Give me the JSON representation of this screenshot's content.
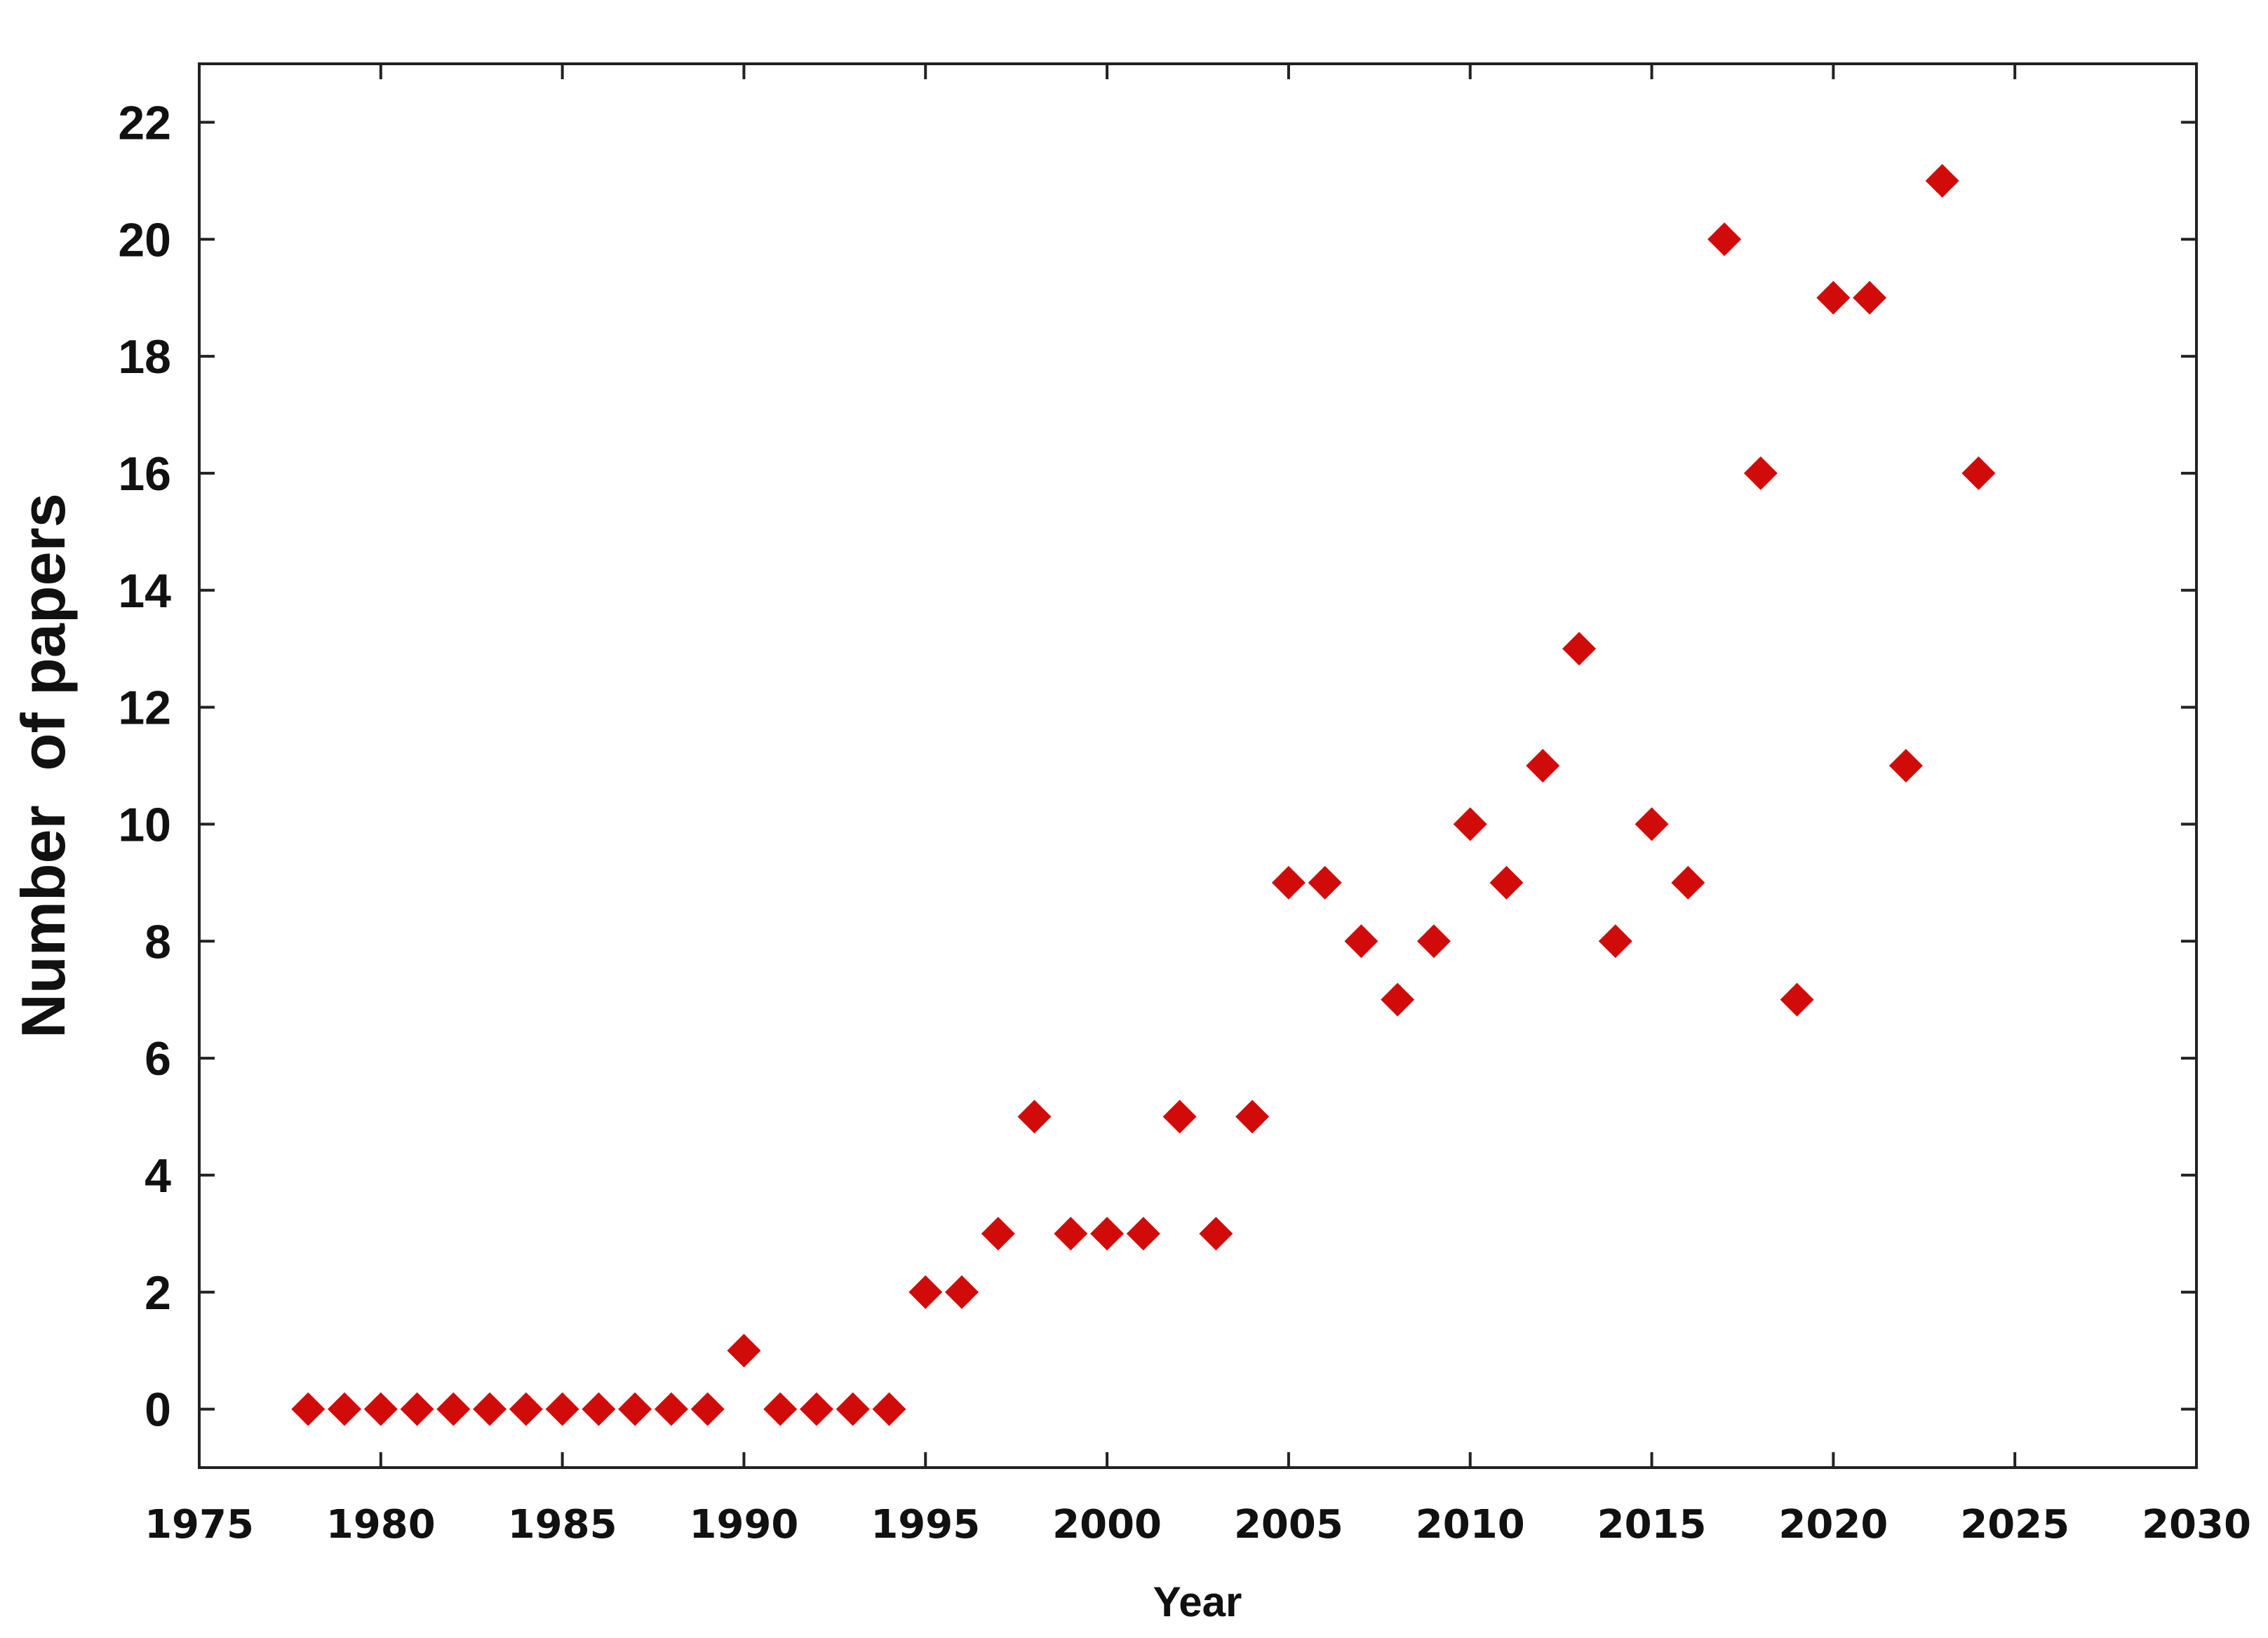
{
  "chart_data": {
    "type": "scatter",
    "title": "",
    "xlabel": "Year",
    "ylabel": "Number  of papers",
    "xlim": [
      1975,
      2030
    ],
    "ylim": [
      -1,
      23
    ],
    "xticks": [
      1975,
      1980,
      1985,
      1990,
      1995,
      2000,
      2005,
      2010,
      2015,
      2020,
      2025,
      2030
    ],
    "xtick_labels": [
      "1975",
      "1980",
      "1985",
      "1990",
      "1995",
      "2000",
      "2005",
      "2010",
      "2015",
      "2020",
      "2025",
      "2030"
    ],
    "yticks": [
      0,
      2,
      4,
      6,
      8,
      10,
      12,
      14,
      16,
      18,
      20,
      22
    ],
    "ytick_labels": [
      "0",
      "2",
      "4",
      "6",
      "8",
      "10",
      "12",
      "14",
      "16",
      "18",
      "20",
      "22"
    ],
    "grid": false,
    "legend": "none",
    "marker": "diamond",
    "marker_color": "#d10a0a",
    "series": [
      {
        "x": [
          1978,
          1979,
          1980,
          1981,
          1982,
          1983,
          1984,
          1985,
          1986,
          1987,
          1988,
          1989,
          1990,
          1991,
          1992,
          1993,
          1994,
          1995,
          1996,
          1997,
          1998,
          1999,
          2000,
          2001,
          2002,
          2003,
          2004,
          2005,
          2006,
          2007,
          2008,
          2009,
          2010,
          2011,
          2012,
          2013,
          2014,
          2015,
          2016,
          2017,
          2018,
          2019,
          2020,
          2021,
          2022,
          2023,
          2024
        ],
        "y": [
          0,
          0,
          0,
          0,
          0,
          0,
          0,
          0,
          0,
          0,
          0,
          0,
          1,
          0,
          0,
          0,
          0,
          2,
          2,
          3,
          5,
          3,
          3,
          3,
          5,
          3,
          5,
          9,
          9,
          8,
          7,
          8,
          10,
          9,
          11,
          13,
          8,
          10,
          9,
          20,
          16,
          7,
          19,
          19,
          11,
          21,
          16
        ]
      }
    ]
  }
}
